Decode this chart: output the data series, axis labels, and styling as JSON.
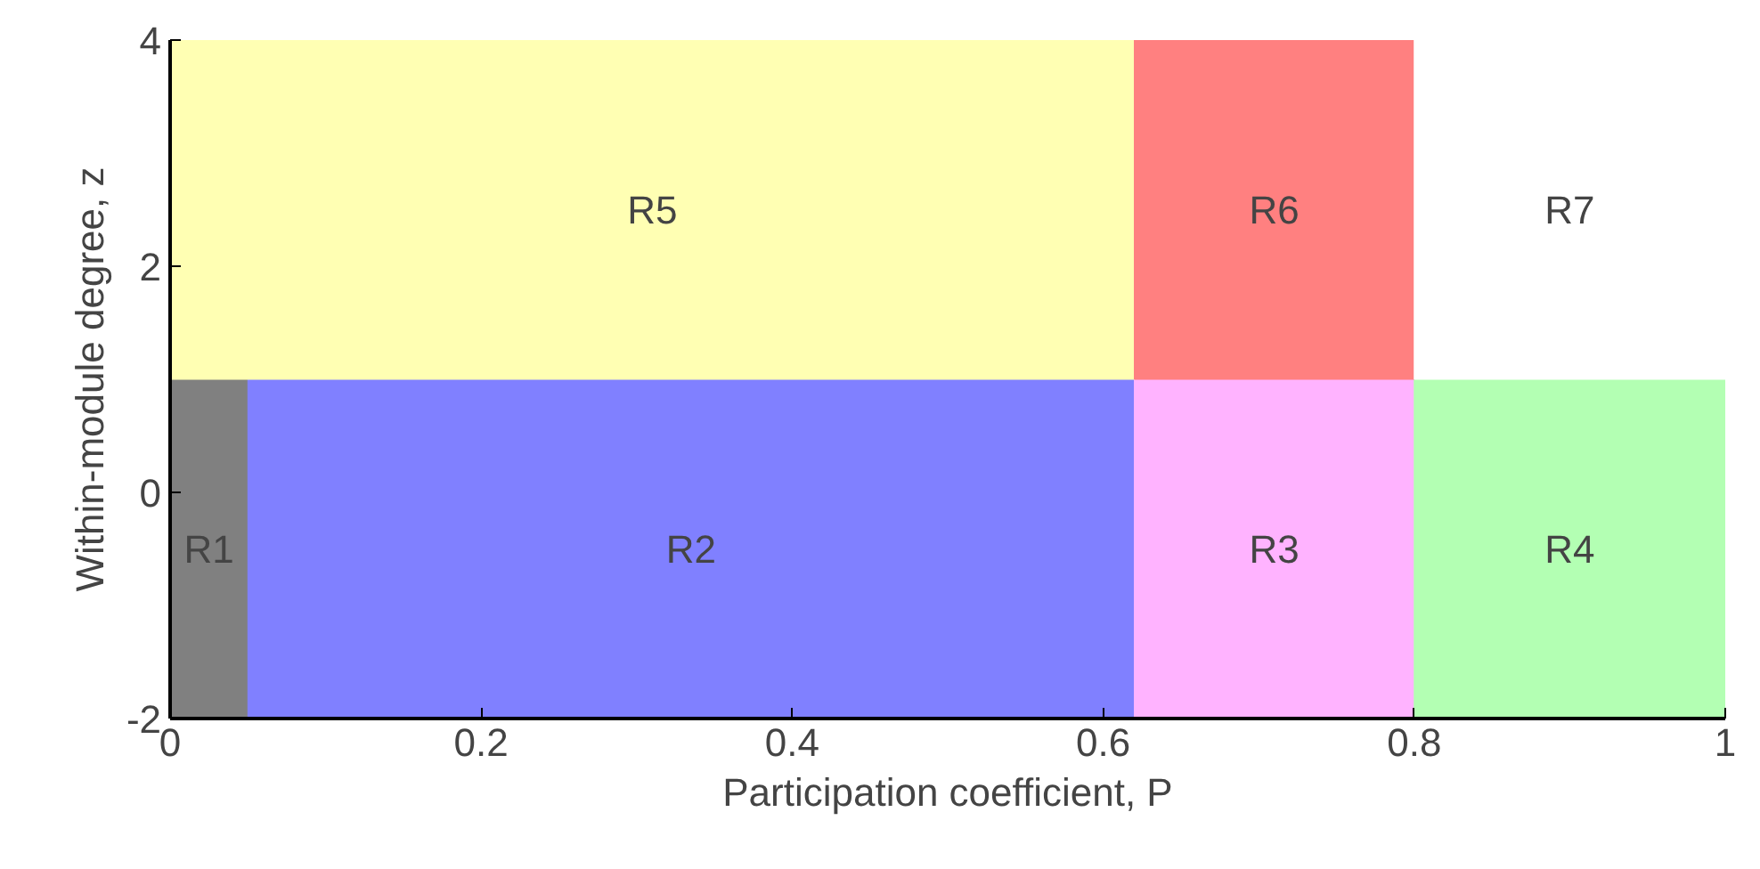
{
  "chart_data": {
    "type": "bar",
    "orientation": "horizontal",
    "stacked": true,
    "xlabel": "Participation coefficient, P",
    "ylabel": "Within-module degree, z",
    "x": [
      -0.5,
      2.5
    ],
    "series": [
      {
        "name": "R1",
        "color": "#808080",
        "values": [
          0.05,
          null
        ]
      },
      {
        "name": "R2",
        "color": "#8080ff",
        "values": [
          0.57,
          null
        ]
      },
      {
        "name": "R3",
        "color": "#ffb3ff",
        "values": [
          0.18,
          null
        ]
      },
      {
        "name": "R4",
        "color": "#b3ffb3",
        "values": [
          0.2,
          null
        ]
      },
      {
        "name": "R5",
        "color": "#ffffb3",
        "values": [
          null,
          0.62
        ]
      },
      {
        "name": "R6",
        "color": "#ff8080",
        "values": [
          null,
          0.18
        ]
      },
      {
        "name": "R7",
        "color": "#ffffff",
        "values": [
          null,
          0.2
        ]
      }
    ],
    "xlim": [
      0,
      1
    ],
    "ylim": [
      -2,
      4
    ],
    "xticks": [
      0,
      0.2,
      0.4,
      0.6,
      0.8,
      1
    ],
    "yticks": [
      -2,
      0,
      2,
      4
    ]
  }
}
